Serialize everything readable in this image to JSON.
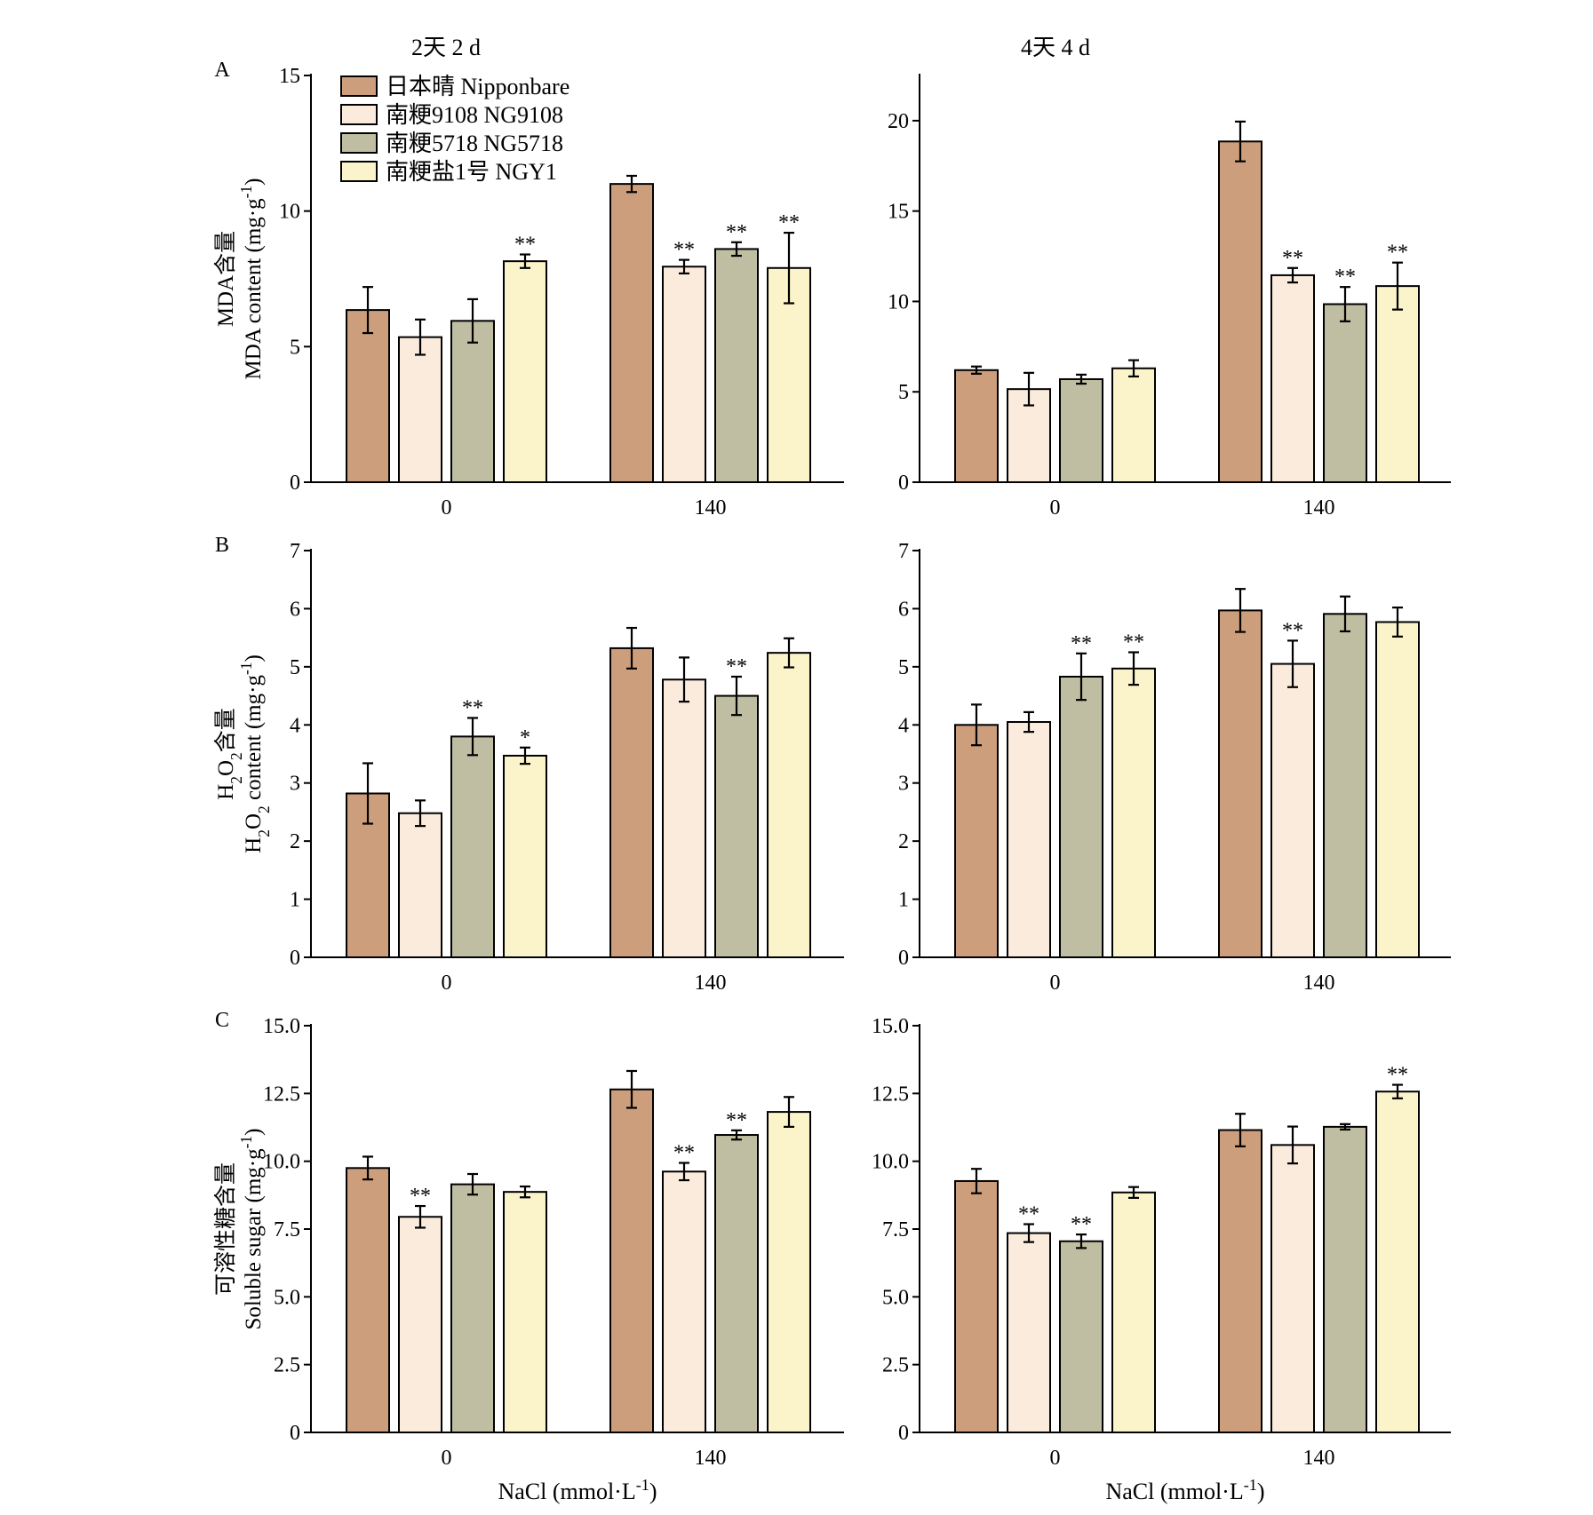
{
  "legend": [
    {
      "label": "日本晴 Nipponbare",
      "color": "#cd9e7b"
    },
    {
      "label": "南粳9108 NG9108",
      "color": "#fbebdd"
    },
    {
      "label": "南粳5718 NG5718",
      "color": "#bfbea2"
    },
    {
      "label": "南粳盐1号 NGY1",
      "color": "#fbf4cb"
    }
  ],
  "columns": [
    {
      "title": "2天  2 d"
    },
    {
      "title": "4天  4 d"
    }
  ],
  "x_axis_label": "NaCl (mmol·L-1)",
  "chart_data": [
    {
      "type": "bar",
      "panel": "A",
      "column": 0,
      "ylabel_cn": "MDA含量",
      "ylabel_en": "MDA content (mg·g-1)",
      "categories": [
        "0",
        "140"
      ],
      "ylim": [
        0,
        15
      ],
      "yticks": [
        "0",
        "5",
        "10",
        "15"
      ],
      "series": [
        {
          "values": [
            6.35,
            11.0
          ],
          "errors": [
            0.85,
            0.3
          ],
          "sig": [
            "",
            ""
          ]
        },
        {
          "values": [
            5.35,
            7.95
          ],
          "errors": [
            0.65,
            0.25
          ],
          "sig": [
            "",
            "**"
          ]
        },
        {
          "values": [
            5.95,
            8.6
          ],
          "errors": [
            0.8,
            0.25
          ],
          "sig": [
            "",
            "**"
          ]
        },
        {
          "values": [
            8.15,
            7.9
          ],
          "errors": [
            0.25,
            1.3
          ],
          "sig": [
            "**",
            "**"
          ]
        }
      ]
    },
    {
      "type": "bar",
      "panel": "",
      "column": 1,
      "ylabel_cn": "",
      "ylabel_en": "",
      "categories": [
        "0",
        "140"
      ],
      "ylim": [
        0,
        22.5
      ],
      "yticks": [
        "0",
        "5",
        "10",
        "15",
        "20"
      ],
      "series": [
        {
          "values": [
            6.2,
            18.85
          ],
          "errors": [
            0.2,
            1.1
          ],
          "sig": [
            "",
            ""
          ]
        },
        {
          "values": [
            5.15,
            11.45
          ],
          "errors": [
            0.9,
            0.4
          ],
          "sig": [
            "",
            "**"
          ]
        },
        {
          "values": [
            5.7,
            9.85
          ],
          "errors": [
            0.25,
            0.95
          ],
          "sig": [
            "",
            "**"
          ]
        },
        {
          "values": [
            6.3,
            10.85
          ],
          "errors": [
            0.45,
            1.3
          ],
          "sig": [
            "",
            "**"
          ]
        }
      ]
    },
    {
      "type": "bar",
      "panel": "B",
      "column": 0,
      "ylabel_cn": "H2O2含量",
      "ylabel_en": "H2O2 content (mg·g-1)",
      "categories": [
        "0",
        "140"
      ],
      "ylim": [
        0,
        7
      ],
      "yticks": [
        "0",
        "1",
        "2",
        "3",
        "4",
        "5",
        "6",
        "7"
      ],
      "series": [
        {
          "values": [
            2.82,
            5.32
          ],
          "errors": [
            0.52,
            0.35
          ],
          "sig": [
            "",
            ""
          ]
        },
        {
          "values": [
            2.48,
            4.78
          ],
          "errors": [
            0.22,
            0.38
          ],
          "sig": [
            "",
            ""
          ]
        },
        {
          "values": [
            3.8,
            4.5
          ],
          "errors": [
            0.32,
            0.33
          ],
          "sig": [
            "**",
            "**"
          ]
        },
        {
          "values": [
            3.47,
            5.24
          ],
          "errors": [
            0.14,
            0.25
          ],
          "sig": [
            "*",
            ""
          ]
        }
      ]
    },
    {
      "type": "bar",
      "panel": "",
      "column": 1,
      "ylabel_cn": "",
      "ylabel_en": "",
      "categories": [
        "0",
        "140"
      ],
      "ylim": [
        0,
        7
      ],
      "yticks": [
        "0",
        "1",
        "2",
        "3",
        "4",
        "5",
        "6",
        "7"
      ],
      "series": [
        {
          "values": [
            4.0,
            5.97
          ],
          "errors": [
            0.35,
            0.37
          ],
          "sig": [
            "",
            ""
          ]
        },
        {
          "values": [
            4.05,
            5.05
          ],
          "errors": [
            0.17,
            0.4
          ],
          "sig": [
            "",
            "**"
          ]
        },
        {
          "values": [
            4.83,
            5.91
          ],
          "errors": [
            0.4,
            0.3
          ],
          "sig": [
            "**",
            ""
          ]
        },
        {
          "values": [
            4.97,
            5.77
          ],
          "errors": [
            0.28,
            0.25
          ],
          "sig": [
            "**",
            ""
          ]
        }
      ]
    },
    {
      "type": "bar",
      "panel": "C",
      "column": 0,
      "ylabel_cn": "可溶性糖含量",
      "ylabel_en": "Soluble sugar (mg·g-1)",
      "categories": [
        "0",
        "140"
      ],
      "ylim": [
        0,
        15
      ],
      "yticks": [
        "0",
        "2.5",
        "5.0",
        "7.5",
        "10.0",
        "12.5",
        "15.0"
      ],
      "series": [
        {
          "values": [
            9.75,
            12.65
          ],
          "errors": [
            0.42,
            0.68
          ],
          "sig": [
            "",
            ""
          ]
        },
        {
          "values": [
            7.95,
            9.62
          ],
          "errors": [
            0.4,
            0.32
          ],
          "sig": [
            "**",
            "**"
          ]
        },
        {
          "values": [
            9.15,
            10.97
          ],
          "errors": [
            0.38,
            0.17
          ],
          "sig": [
            "",
            "**"
          ]
        },
        {
          "values": [
            8.87,
            11.82
          ],
          "errors": [
            0.2,
            0.55
          ],
          "sig": [
            "",
            ""
          ]
        }
      ]
    },
    {
      "type": "bar",
      "panel": "",
      "column": 1,
      "ylabel_cn": "",
      "ylabel_en": "",
      "categories": [
        "0",
        "140"
      ],
      "ylim": [
        0,
        15
      ],
      "yticks": [
        "0",
        "2.5",
        "5.0",
        "7.5",
        "10.0",
        "12.5",
        "15.0"
      ],
      "series": [
        {
          "values": [
            9.27,
            11.15
          ],
          "errors": [
            0.45,
            0.6
          ],
          "sig": [
            "",
            ""
          ]
        },
        {
          "values": [
            7.35,
            10.6
          ],
          "errors": [
            0.33,
            0.68
          ],
          "sig": [
            "**",
            ""
          ]
        },
        {
          "values": [
            7.05,
            11.27
          ],
          "errors": [
            0.25,
            0.1
          ],
          "sig": [
            "**",
            ""
          ]
        },
        {
          "values": [
            8.85,
            12.57
          ],
          "errors": [
            0.2,
            0.25
          ],
          "sig": [
            "",
            "**"
          ]
        }
      ]
    }
  ]
}
